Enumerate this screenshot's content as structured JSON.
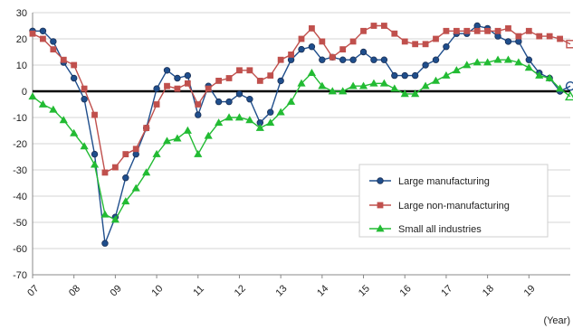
{
  "chart_data": {
    "type": "line",
    "x_unit_label": "(Year)",
    "x_tick_labels": [
      "07",
      "08",
      "09",
      "10",
      "11",
      "12",
      "13",
      "14",
      "15",
      "16",
      "17",
      "18",
      "19"
    ],
    "ylim": [
      -70,
      30
    ],
    "y_ticks": [
      30,
      20,
      10,
      0,
      -10,
      -20,
      -30,
      -40,
      -50,
      -60,
      -70
    ],
    "grid": "horizontal",
    "zero_line": "bold",
    "legend_placement": "bottom-right",
    "colors": {
      "large_manufacturing": "#1f4e8c",
      "large_non_manufacturing": "#c0504d",
      "small_all_industries": "#22bb33"
    },
    "series": [
      {
        "key": "large_manufacturing",
        "name": "Large manufacturing",
        "marker": "circle",
        "x": [
          2007.0,
          2007.25,
          2007.5,
          2007.75,
          2008.0,
          2008.25,
          2008.5,
          2008.75,
          2009.0,
          2009.25,
          2009.5,
          2009.75,
          2010.0,
          2010.25,
          2010.5,
          2010.75,
          2011.0,
          2011.25,
          2011.5,
          2011.75,
          2012.0,
          2012.25,
          2012.5,
          2012.75,
          2013.0,
          2013.25,
          2013.5,
          2013.75,
          2014.0,
          2014.25,
          2014.5,
          2014.75,
          2015.0,
          2015.25,
          2015.5,
          2015.75,
          2016.0,
          2016.25,
          2016.5,
          2016.75,
          2017.0,
          2017.25,
          2017.5,
          2017.75,
          2018.0,
          2018.25,
          2018.5,
          2018.75,
          2019.0,
          2019.25,
          2019.5,
          2019.75,
          2020.0
        ],
        "values": [
          23,
          23,
          19,
          11,
          5,
          -3,
          -24,
          -58,
          -48,
          -33,
          -24,
          -14,
          1,
          8,
          5,
          6,
          -9,
          2,
          -4,
          -4,
          -1,
          -3,
          -12,
          -8,
          4,
          12,
          16,
          17,
          12,
          13,
          12,
          12,
          15,
          12,
          12,
          6,
          6,
          6,
          10,
          12,
          17,
          22,
          22,
          25,
          24,
          21,
          19,
          19,
          12,
          7,
          5,
          0,
          2
        ],
        "open_last": true
      },
      {
        "key": "large_non_manufacturing",
        "name": "Large non-manufacturing",
        "marker": "square",
        "x": [
          2007.0,
          2007.25,
          2007.5,
          2007.75,
          2008.0,
          2008.25,
          2008.5,
          2008.75,
          2009.0,
          2009.25,
          2009.5,
          2009.75,
          2010.0,
          2010.25,
          2010.5,
          2010.75,
          2011.0,
          2011.25,
          2011.5,
          2011.75,
          2012.0,
          2012.25,
          2012.5,
          2012.75,
          2013.0,
          2013.25,
          2013.5,
          2013.75,
          2014.0,
          2014.25,
          2014.5,
          2014.75,
          2015.0,
          2015.25,
          2015.5,
          2015.75,
          2016.0,
          2016.25,
          2016.5,
          2016.75,
          2017.0,
          2017.25,
          2017.5,
          2017.75,
          2018.0,
          2018.25,
          2018.5,
          2018.75,
          2019.0,
          2019.25,
          2019.5,
          2019.75,
          2020.0
        ],
        "values": [
          22,
          20,
          16,
          12,
          10,
          1,
          -9,
          -31,
          -29,
          -24,
          -22,
          -14,
          -5,
          2,
          1,
          3,
          -5,
          1,
          4,
          5,
          8,
          8,
          4,
          6,
          12,
          14,
          20,
          24,
          19,
          13,
          16,
          19,
          23,
          25,
          25,
          22,
          19,
          18,
          18,
          20,
          23,
          23,
          23,
          23,
          23,
          23,
          24,
          21,
          23,
          21,
          21,
          20,
          18
        ],
        "open_last": true
      },
      {
        "key": "small_all_industries",
        "name": "Small all industries",
        "marker": "triangle",
        "x": [
          2007.0,
          2007.25,
          2007.5,
          2007.75,
          2008.0,
          2008.25,
          2008.5,
          2008.75,
          2009.0,
          2009.25,
          2009.5,
          2009.75,
          2010.0,
          2010.25,
          2010.5,
          2010.75,
          2011.0,
          2011.25,
          2011.5,
          2011.75,
          2012.0,
          2012.25,
          2012.5,
          2012.75,
          2013.0,
          2013.25,
          2013.5,
          2013.75,
          2014.0,
          2014.25,
          2014.5,
          2014.75,
          2015.0,
          2015.25,
          2015.5,
          2015.75,
          2016.0,
          2016.25,
          2016.5,
          2016.75,
          2017.0,
          2017.25,
          2017.5,
          2017.75,
          2018.0,
          2018.25,
          2018.5,
          2018.75,
          2019.0,
          2019.25,
          2019.5,
          2019.75,
          2020.0
        ],
        "values": [
          -2,
          -5,
          -7,
          -11,
          -16,
          -21,
          -28,
          -47,
          -49,
          -42,
          -37,
          -31,
          -24,
          -19,
          -18,
          -15,
          -24,
          -17,
          -12,
          -10,
          -10,
          -11,
          -14,
          -12,
          -8,
          -4,
          3,
          7,
          2,
          0,
          0,
          2,
          2,
          3,
          3,
          1,
          -1,
          -1,
          2,
          4,
          6,
          8,
          10,
          11,
          11,
          12,
          12,
          11,
          9,
          6,
          5,
          1,
          -2
        ],
        "open_last": true
      }
    ]
  }
}
